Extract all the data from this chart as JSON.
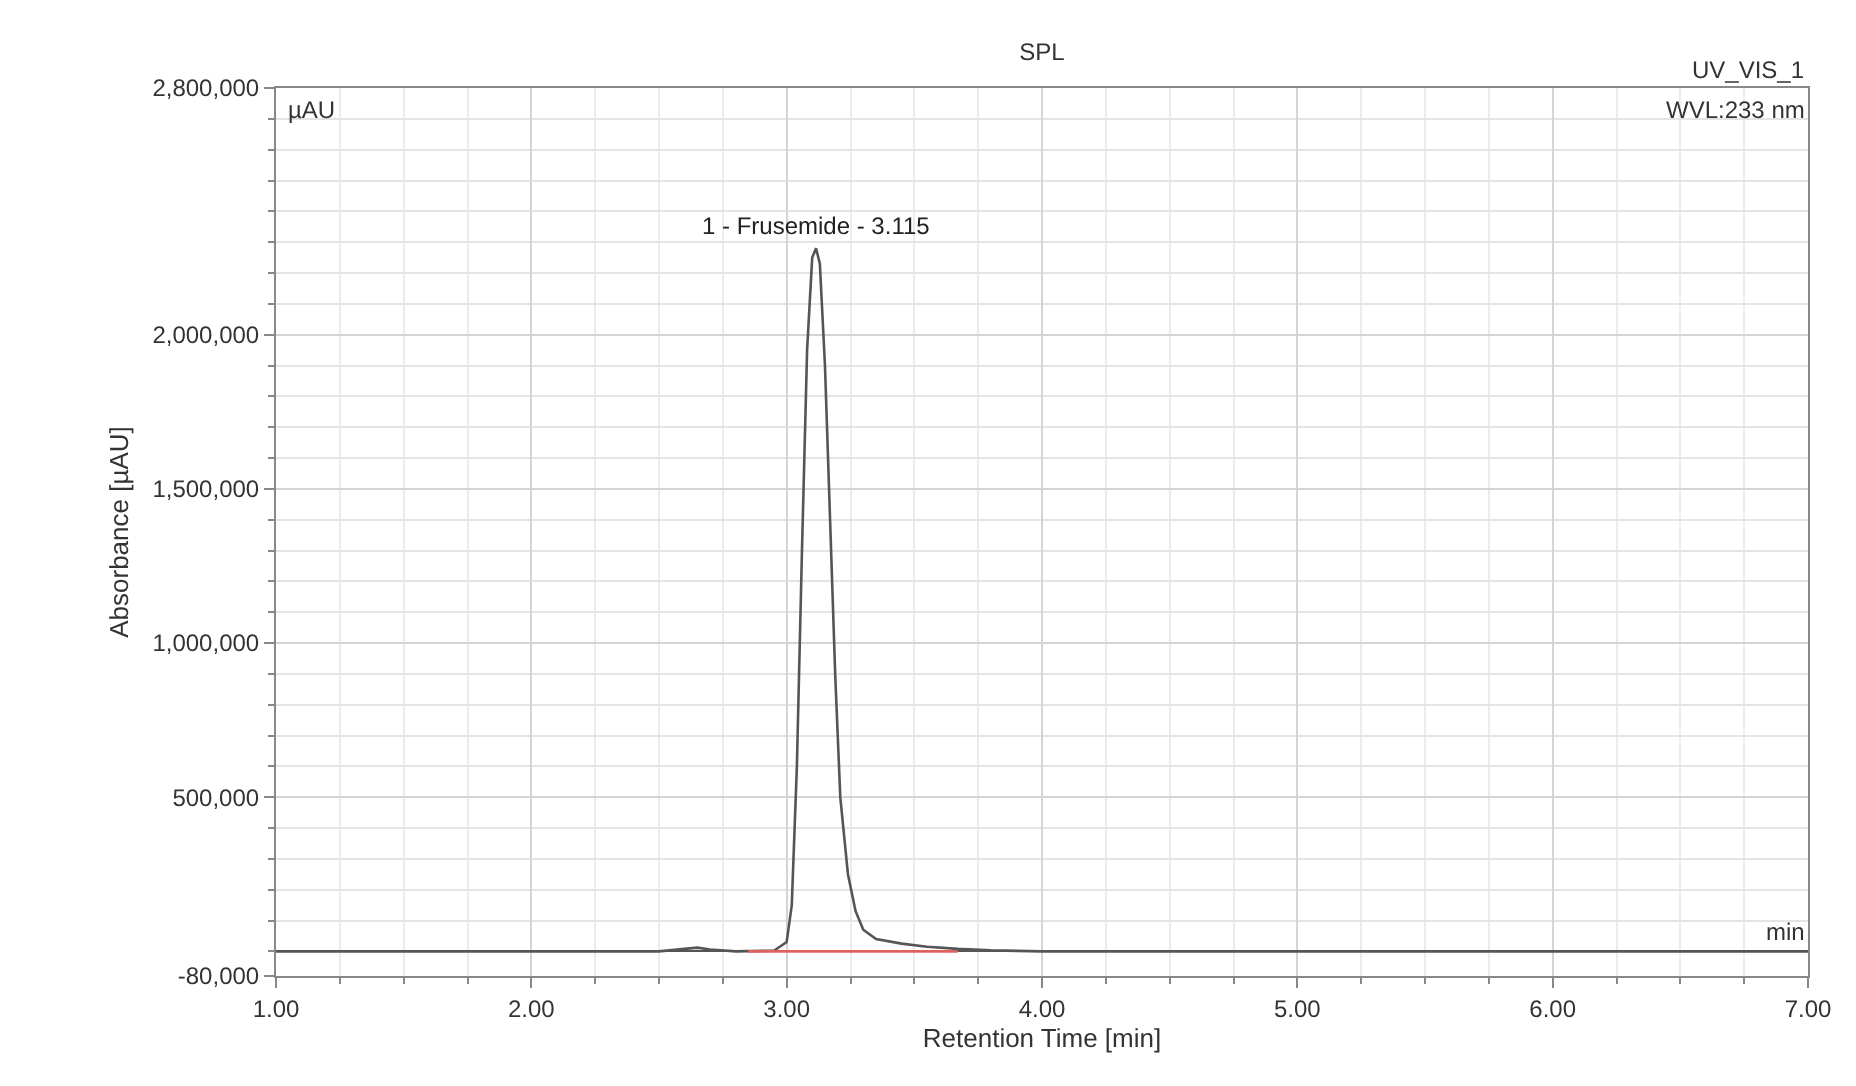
{
  "chart_data": {
    "type": "line",
    "title": "SPL",
    "xlabel": "Retention Time [min]",
    "ylabel": "Absorbance [µAU]",
    "xlim": [
      1,
      7
    ],
    "ylim": [
      -80000,
      2800000
    ],
    "xticks": [
      {
        "value": 1,
        "label": "1.00"
      },
      {
        "value": 2,
        "label": "2.00"
      },
      {
        "value": 3,
        "label": "3.00"
      },
      {
        "value": 4,
        "label": "4.00"
      },
      {
        "value": 5,
        "label": "5.00"
      },
      {
        "value": 6,
        "label": "6.00"
      },
      {
        "value": 7,
        "label": "7.00"
      }
    ],
    "yticks": [
      {
        "value": -80000,
        "label": "-80,000"
      },
      {
        "value": 500000,
        "label": "500,000"
      },
      {
        "value": 1000000,
        "label": "1,000,000"
      },
      {
        "value": 1500000,
        "label": "1,500,000"
      },
      {
        "value": 2000000,
        "label": "2,000,000"
      },
      {
        "value": 2800000,
        "label": "2,800,000"
      }
    ],
    "grid": true,
    "marker": "none",
    "line_style": "solid",
    "series": [
      {
        "color": "#555555",
        "x": [
          1.0,
          2.5,
          2.6,
          2.65,
          2.7,
          2.8,
          2.95,
          3.0,
          3.02,
          3.04,
          3.06,
          3.08,
          3.1,
          3.115,
          3.13,
          3.15,
          3.17,
          3.19,
          3.21,
          3.24,
          3.27,
          3.3,
          3.35,
          3.45,
          3.55,
          3.67,
          3.8,
          4.0,
          7.0
        ],
        "values": [
          0,
          0,
          8000,
          12000,
          6000,
          0,
          2000,
          30000,
          150000,
          600000,
          1300000,
          1950000,
          2250000,
          2280000,
          2230000,
          1900000,
          1400000,
          900000,
          500000,
          250000,
          130000,
          70000,
          40000,
          25000,
          15000,
          8000,
          3000,
          0,
          0
        ]
      },
      {
        "color": "#e06060",
        "x": [
          2.85,
          3.67
        ],
        "values": [
          0,
          0
        ]
      }
    ],
    "annotations": [
      "µAU",
      "UV_VIS_1",
      "WVL:233 nm",
      "min",
      {
        "text": "1 - Frusemide - 3.115",
        "x": 3.115,
        "y": 2280000
      }
    ]
  }
}
